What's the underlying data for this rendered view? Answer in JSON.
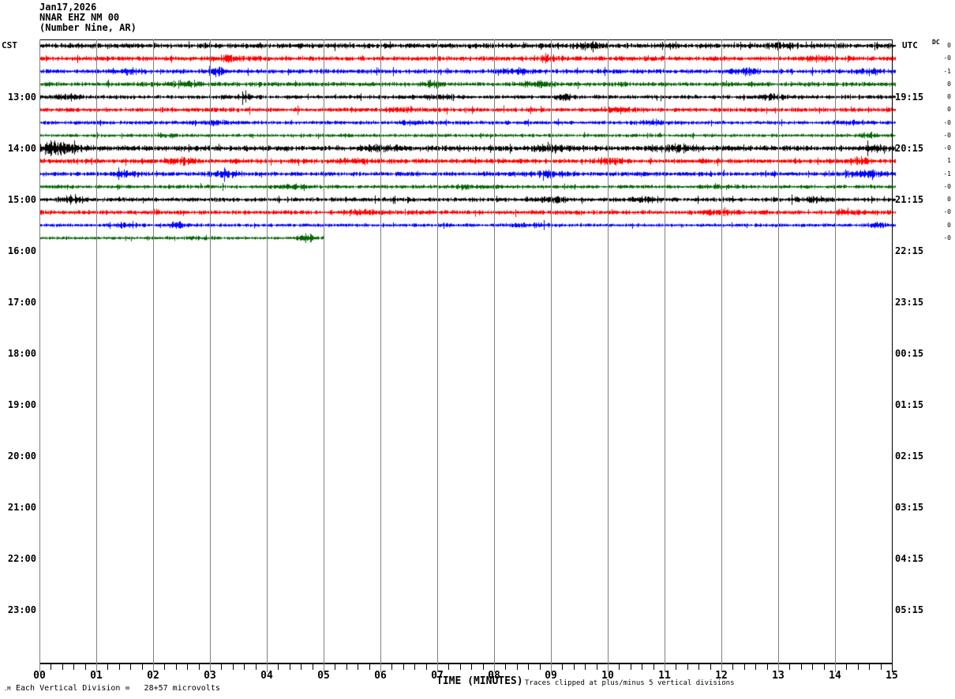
{
  "header": {
    "date": "Jan17,2026",
    "station": "NNAR EHZ NM 00",
    "station_name": "(Number Nine, AR)"
  },
  "axes": {
    "left_tz": "CST",
    "right_tz": "UTC",
    "dc_label": "DC",
    "left_times": [
      "13:00",
      "14:00",
      "15:00",
      "16:00",
      "17:00",
      "18:00",
      "19:00",
      "20:00",
      "21:00",
      "22:00",
      "23:00"
    ],
    "right_times": [
      "19:15",
      "20:15",
      "21:15",
      "22:15",
      "23:15",
      "00:15",
      "01:15",
      "02:15",
      "03:15",
      "04:15",
      "05:15"
    ],
    "x_ticks": [
      "00",
      "01",
      "02",
      "03",
      "04",
      "05",
      "06",
      "07",
      "08",
      "09",
      "10",
      "11",
      "12",
      "13",
      "14",
      "15"
    ],
    "xlabel": "TIME (MINUTES)"
  },
  "footer": {
    "corner_mark": ".M",
    "scale_note": "Each Vertical Division =   28+57 microvolts",
    "clip_note": "Traces clipped at plus/minus 5 vertical divisions"
  },
  "chart_data": {
    "type": "line",
    "title": "NNAR EHZ NM 00 (Number Nine, AR) helicorder, Jan17,2026",
    "xlabel": "TIME (MINUTES)",
    "x_range_minutes": [
      0,
      15
    ],
    "minor_ticks_per_minute": 5,
    "rows_per_hour": 4,
    "minutes_per_row": 15,
    "grid": true,
    "colors": {
      "black": "#000000",
      "red": "#ff0000",
      "blue": "#0000ff",
      "green": "#006600",
      "grid": "#808080"
    },
    "dc_values": [
      "0",
      "-0",
      "-1",
      "0",
      "0",
      "0",
      "-0",
      "-0",
      "-0",
      "1",
      "-1",
      "-0",
      "0",
      "-0",
      "0",
      "-0"
    ],
    "traces": [
      {
        "row": 0,
        "color": "black",
        "dc": "0",
        "end_min": 15,
        "amp": 3.0,
        "seed": 101,
        "bursts": [
          {
            "m": 9.6,
            "w": 0.3,
            "k": 0.8
          },
          {
            "m": 13.0,
            "w": 0.2,
            "k": 0.7
          }
        ]
      },
      {
        "row": 1,
        "color": "red",
        "dc": "-0",
        "end_min": 15,
        "amp": 2.8,
        "seed": 102,
        "bursts": [
          {
            "m": 3.3,
            "w": 0.3,
            "k": 0.9
          },
          {
            "m": 9.0,
            "w": 0.25,
            "k": 0.7
          },
          {
            "m": 13.8,
            "w": 0.2,
            "k": 0.8
          }
        ]
      },
      {
        "row": 2,
        "color": "blue",
        "dc": "-1",
        "end_min": 15,
        "amp": 2.6,
        "seed": 103,
        "bursts": [
          {
            "m": 1.6,
            "w": 0.2,
            "k": 1.0
          },
          {
            "m": 3.1,
            "w": 0.15,
            "k": 1.2
          },
          {
            "m": 8.4,
            "w": 0.3,
            "k": 0.9
          },
          {
            "m": 12.4,
            "w": 0.25,
            "k": 1.0
          },
          {
            "m": 14.6,
            "w": 0.2,
            "k": 1.0
          }
        ]
      },
      {
        "row": 3,
        "color": "green",
        "dc": "0",
        "end_min": 15,
        "amp": 2.6,
        "seed": 104,
        "bursts": [
          {
            "m": 2.6,
            "w": 0.3,
            "k": 0.6
          },
          {
            "m": 6.9,
            "w": 0.1,
            "k": 1.6
          },
          {
            "m": 8.8,
            "w": 0.3,
            "k": 0.6
          }
        ]
      },
      {
        "row": 4,
        "color": "black",
        "dc": "0",
        "end_min": 15,
        "amp": 2.4,
        "seed": 105,
        "bursts": [
          {
            "m": 0.5,
            "w": 0.2,
            "k": 1.0
          },
          {
            "m": 3.6,
            "w": 0.2,
            "k": 0.8
          },
          {
            "m": 7.0,
            "w": 0.3,
            "k": 0.7
          },
          {
            "m": 9.2,
            "w": 0.2,
            "k": 0.8
          },
          {
            "m": 12.9,
            "w": 0.25,
            "k": 1.0
          }
        ]
      },
      {
        "row": 5,
        "color": "red",
        "dc": "0",
        "end_min": 15,
        "amp": 2.6,
        "seed": 106,
        "bursts": [
          {
            "m": 6.4,
            "w": 0.3,
            "k": 0.5
          },
          {
            "m": 10.2,
            "w": 0.3,
            "k": 0.8
          }
        ]
      },
      {
        "row": 6,
        "color": "blue",
        "dc": "-0",
        "end_min": 15,
        "amp": 2.2,
        "seed": 107,
        "bursts": [
          {
            "m": 3.0,
            "w": 0.3,
            "k": 0.8
          },
          {
            "m": 6.6,
            "w": 0.25,
            "k": 0.9
          },
          {
            "m": 10.8,
            "w": 0.3,
            "k": 0.8
          },
          {
            "m": 14.2,
            "w": 0.2,
            "k": 0.7
          }
        ]
      },
      {
        "row": 7,
        "color": "green",
        "dc": "-0",
        "end_min": 15,
        "amp": 2.0,
        "seed": 108,
        "bursts": [
          {
            "m": 2.2,
            "w": 0.2,
            "k": 0.8
          },
          {
            "m": 14.6,
            "w": 0.15,
            "k": 1.0
          }
        ]
      },
      {
        "row": 8,
        "color": "black",
        "dc": "-0",
        "end_min": 15,
        "amp": 3.2,
        "seed": 109,
        "bursts": [
          {
            "m": 0.3,
            "w": 0.35,
            "k": 2.0
          },
          {
            "m": 6.0,
            "w": 0.3,
            "k": 0.8
          },
          {
            "m": 9.0,
            "w": 0.3,
            "k": 0.9
          },
          {
            "m": 11.2,
            "w": 0.3,
            "k": 0.8
          },
          {
            "m": 14.7,
            "w": 0.2,
            "k": 1.0
          }
        ]
      },
      {
        "row": 9,
        "color": "red",
        "dc": "1",
        "end_min": 15,
        "amp": 2.8,
        "seed": 110,
        "bursts": [
          {
            "m": 2.5,
            "w": 0.3,
            "k": 0.8
          },
          {
            "m": 5.6,
            "w": 0.25,
            "k": 0.8
          },
          {
            "m": 10.0,
            "w": 0.3,
            "k": 0.8
          },
          {
            "m": 14.4,
            "w": 0.25,
            "k": 0.9
          }
        ]
      },
      {
        "row": 10,
        "color": "blue",
        "dc": "-1",
        "end_min": 15,
        "amp": 2.6,
        "seed": 111,
        "bursts": [
          {
            "m": 1.5,
            "w": 0.25,
            "k": 1.0
          },
          {
            "m": 3.3,
            "w": 0.2,
            "k": 1.1
          },
          {
            "m": 9.0,
            "w": 0.4,
            "k": 0.8
          },
          {
            "m": 14.5,
            "w": 0.3,
            "k": 1.0
          }
        ]
      },
      {
        "row": 11,
        "color": "green",
        "dc": "-0",
        "end_min": 15,
        "amp": 2.2,
        "seed": 112,
        "bursts": [
          {
            "m": 4.5,
            "w": 0.3,
            "k": 0.6
          },
          {
            "m": 7.5,
            "w": 0.3,
            "k": 0.6
          },
          {
            "m": 12.0,
            "w": 0.3,
            "k": 0.5
          }
        ]
      },
      {
        "row": 12,
        "color": "black",
        "dc": "0",
        "end_min": 15,
        "amp": 2.4,
        "seed": 113,
        "bursts": [
          {
            "m": 0.6,
            "w": 0.2,
            "k": 1.6
          },
          {
            "m": 9.0,
            "w": 0.3,
            "k": 0.8
          },
          {
            "m": 10.6,
            "w": 0.25,
            "k": 0.9
          },
          {
            "m": 13.6,
            "w": 0.3,
            "k": 0.9
          }
        ]
      },
      {
        "row": 13,
        "color": "red",
        "dc": "-0",
        "end_min": 15,
        "amp": 2.6,
        "seed": 114,
        "bursts": [
          {
            "m": 5.6,
            "w": 0.3,
            "k": 0.8
          },
          {
            "m": 12.0,
            "w": 0.3,
            "k": 0.7
          },
          {
            "m": 14.2,
            "w": 0.25,
            "k": 0.8
          }
        ]
      },
      {
        "row": 14,
        "color": "blue",
        "dc": "0",
        "end_min": 15,
        "amp": 2.0,
        "seed": 115,
        "bursts": [
          {
            "m": 1.5,
            "w": 0.2,
            "k": 1.2
          },
          {
            "m": 2.4,
            "w": 0.15,
            "k": 1.2
          },
          {
            "m": 8.6,
            "w": 0.3,
            "k": 0.9
          },
          {
            "m": 14.8,
            "w": 0.15,
            "k": 1.0
          }
        ]
      },
      {
        "row": 15,
        "color": "green",
        "dc": "-0",
        "end_min": 5,
        "amp": 1.8,
        "seed": 116,
        "bursts": [
          {
            "m": 2.8,
            "w": 0.3,
            "k": 0.5
          },
          {
            "m": 4.7,
            "w": 0.15,
            "k": 2.2
          }
        ]
      }
    ]
  }
}
